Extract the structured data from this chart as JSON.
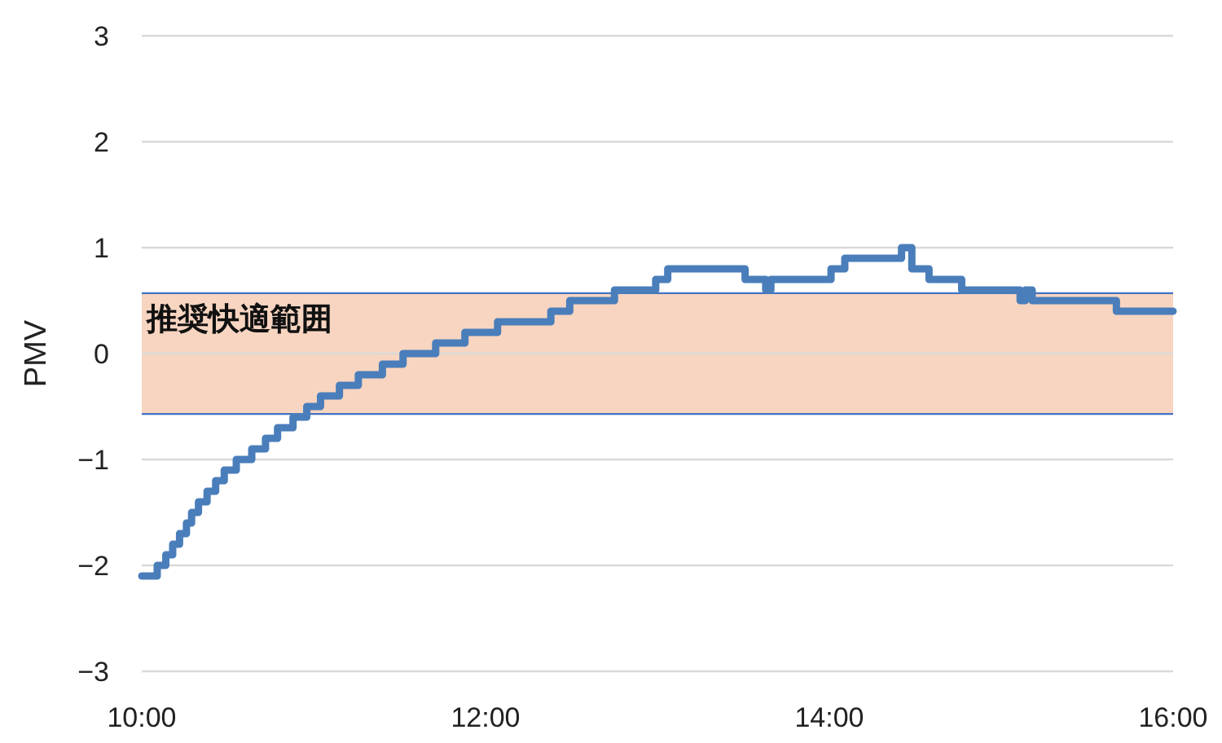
{
  "chart_data": {
    "type": "step",
    "ylabel": "PMV",
    "x": [
      10.0,
      10.09,
      10.14,
      10.18,
      10.22,
      10.26,
      10.29,
      10.33,
      10.38,
      10.43,
      10.48,
      10.55,
      10.64,
      10.72,
      10.79,
      10.88,
      10.96,
      11.04,
      11.15,
      11.26,
      11.4,
      11.52,
      11.71,
      11.88,
      12.07,
      12.38,
      12.49,
      12.75,
      12.99,
      13.06,
      13.51,
      13.63,
      13.66,
      14.01,
      14.09,
      14.42,
      14.48,
      14.58,
      14.77,
      15.11,
      15.14,
      15.18,
      15.67,
      16.0
    ],
    "series": [
      {
        "color": "#4a7ebb",
        "values": [
          -2.1,
          -2.0,
          -1.9,
          -1.8,
          -1.7,
          -1.6,
          -1.5,
          -1.4,
          -1.3,
          -1.2,
          -1.1,
          -1.0,
          -0.9,
          -0.8,
          -0.7,
          -0.6,
          -0.5,
          -0.4,
          -0.3,
          -0.2,
          -0.1,
          0.0,
          0.1,
          0.2,
          0.3,
          0.4,
          0.5,
          0.6,
          0.7,
          0.8,
          0.7,
          0.6,
          0.7,
          0.8,
          0.9,
          1.0,
          0.8,
          0.7,
          0.6,
          0.5,
          0.6,
          0.5,
          0.4,
          0.4
        ]
      }
    ],
    "xlim": [
      10,
      16
    ],
    "xticks": [
      {
        "value": 10,
        "label": "10:00"
      },
      {
        "value": 12,
        "label": "12:00"
      },
      {
        "value": 14,
        "label": "14:00"
      },
      {
        "value": 16,
        "label": "16:00"
      }
    ],
    "ylim": [
      -3,
      3
    ],
    "yticks": [
      -3,
      -2,
      -1,
      0,
      1,
      2,
      3
    ],
    "bands": [
      {
        "axis": "y",
        "from": -0.57,
        "to": 0.57,
        "label": "推奨快適範囲",
        "color": "#f8d5c1"
      }
    ],
    "ref_lines": [
      {
        "axis": "y",
        "value": -0.57,
        "color": "#4472c4"
      },
      {
        "axis": "y",
        "value": 0.57,
        "color": "#4472c4"
      }
    ],
    "grid": "y",
    "marker": "none",
    "line_style": "solid"
  }
}
